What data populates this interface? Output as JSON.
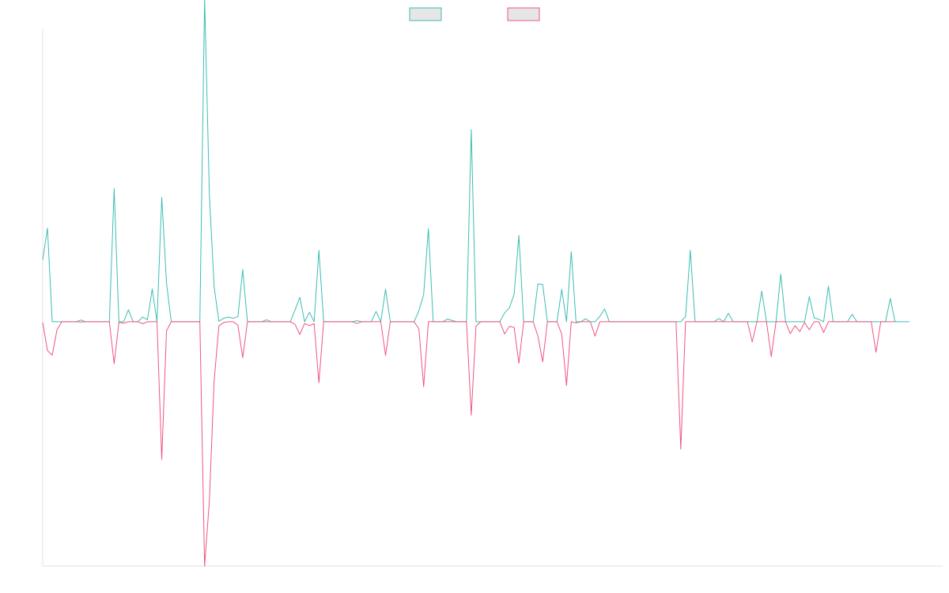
{
  "chart_data": {
    "type": "line",
    "title": "",
    "xlabel": "",
    "ylabel": "",
    "grid": false,
    "legend": {
      "position": "top-center",
      "swatch_fill": "#e6e6e6"
    },
    "x": {
      "type": "index",
      "range": [
        0,
        189
      ]
    },
    "ylim": [
      -1,
      1.2
    ],
    "baseline": 0,
    "series": [
      {
        "color": "#3cbdb3",
        "values": [
          0.253,
          0.383,
          0,
          0,
          0,
          0,
          0,
          0,
          0.007,
          0,
          0,
          0,
          0,
          0,
          0,
          0.545,
          0,
          0,
          0.049,
          0,
          0,
          0.019,
          0.008,
          0.134,
          0,
          0.509,
          0.157,
          0,
          0,
          0,
          0,
          0,
          0,
          0,
          1.326,
          0.521,
          0.143,
          0.002,
          0.014,
          0.019,
          0.014,
          0.021,
          0.213,
          0,
          0,
          0,
          0,
          0.008,
          0,
          0,
          0,
          0,
          0,
          0.049,
          0.1,
          0,
          0.039,
          0,
          0.292,
          0,
          0,
          0,
          0,
          0,
          0,
          0,
          0.004,
          0,
          0,
          0,
          0.042,
          0,
          0.133,
          0,
          0,
          0,
          0,
          0,
          0,
          0.045,
          0.111,
          0.381,
          0,
          0,
          0,
          0.011,
          0.005,
          0,
          0,
          0,
          0.786,
          0,
          0,
          0,
          0,
          0,
          0,
          0.036,
          0.057,
          0.112,
          0.353,
          0,
          0,
          0,
          0.155,
          0.152,
          0,
          0,
          0,
          0.133,
          0,
          0.287,
          0,
          0,
          0.012,
          0,
          0,
          0.022,
          0.052,
          0,
          0,
          0,
          0,
          0,
          0,
          0,
          0,
          0,
          0,
          0,
          0,
          0,
          0,
          0,
          0,
          0.021,
          0.292,
          0,
          0,
          0,
          0,
          0,
          0.013,
          0,
          0.035,
          0,
          0,
          0,
          0,
          0,
          0,
          0.125,
          0,
          0,
          0,
          0.195,
          0,
          0,
          0,
          0,
          0,
          0.103,
          0.016,
          0.01,
          0,
          0.145,
          0,
          0,
          0,
          0,
          0.03,
          0,
          0,
          0,
          0,
          0,
          0,
          0,
          0.095,
          0,
          0,
          0,
          0
        ]
      },
      {
        "color": "#f0557f",
        "values": [
          -0.003,
          -0.118,
          -0.137,
          -0.033,
          0,
          0,
          0,
          0,
          -0.001,
          0,
          0,
          0,
          0,
          0,
          0,
          -0.172,
          -0.003,
          -0.006,
          0,
          0,
          0,
          -0.008,
          0,
          0,
          0,
          -0.563,
          -0.037,
          0,
          0,
          0,
          0,
          0,
          0,
          0,
          -1.0,
          -0.733,
          -0.242,
          -0.017,
          -0.003,
          0,
          0,
          -0.014,
          -0.147,
          0,
          0,
          0,
          0,
          0,
          0,
          0,
          0,
          0,
          0,
          -0.011,
          -0.052,
          -0.007,
          -0.016,
          -0.008,
          -0.25,
          0,
          0,
          0,
          0,
          0,
          0,
          0,
          -0.007,
          0,
          0,
          0,
          0,
          0,
          -0.138,
          0,
          0,
          0,
          0,
          0,
          0,
          -0.029,
          -0.266,
          0,
          0,
          0,
          0,
          0,
          0,
          0,
          0,
          0,
          -0.382,
          -0.018,
          0,
          0,
          0,
          0,
          0,
          -0.05,
          -0.019,
          -0.023,
          -0.17,
          0,
          0,
          0,
          -0.059,
          -0.164,
          0,
          0,
          0,
          -0.051,
          -0.261,
          0,
          -0.005,
          0,
          0,
          0,
          -0.059,
          0,
          0,
          0,
          0,
          0,
          0,
          0,
          0,
          0,
          0,
          0,
          0,
          0,
          0,
          0,
          0,
          0,
          -0.521,
          0,
          0,
          0,
          0,
          0,
          0,
          0,
          0,
          0,
          0,
          0,
          0,
          0,
          0,
          -0.083,
          0,
          0,
          0,
          -0.143,
          0,
          0,
          0,
          -0.049,
          -0.016,
          -0.04,
          -0.003,
          -0.033,
          0,
          0,
          -0.044,
          0,
          0,
          0,
          0,
          0,
          0,
          0,
          0,
          0,
          0,
          -0.125,
          0,
          0,
          0,
          0
        ]
      }
    ]
  }
}
